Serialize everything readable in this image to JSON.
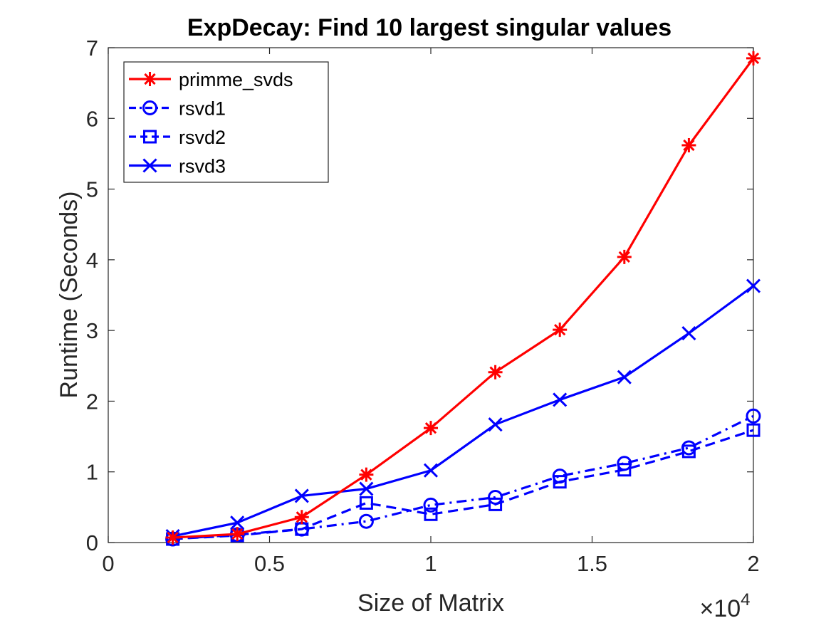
{
  "chart_data": {
    "type": "line",
    "title": "ExpDecay: Find 10 largest singular values",
    "xlabel": "Size of Matrix",
    "ylabel": "Runtime (Seconds)",
    "x_exponent_base": "×10",
    "x_exponent_power": "4",
    "xlim": [
      0,
      2
    ],
    "ylim": [
      0,
      7
    ],
    "xticks": [
      0,
      0.5,
      1,
      1.5,
      2
    ],
    "xtick_labels": [
      "0",
      "0.5",
      "1",
      "1.5",
      "2"
    ],
    "yticks": [
      0,
      1,
      2,
      3,
      4,
      5,
      6,
      7
    ],
    "ytick_labels": [
      "0",
      "1",
      "2",
      "3",
      "4",
      "5",
      "6",
      "7"
    ],
    "grid": false,
    "legend_position": "top-left",
    "x": [
      0.2,
      0.4,
      0.6,
      0.8,
      1.0,
      1.2,
      1.4,
      1.6,
      1.8,
      2.0
    ],
    "series": [
      {
        "name": "primme_svds",
        "color": "#ff0000",
        "marker": "asterisk",
        "line_style": "solid",
        "values": [
          0.07,
          0.12,
          0.36,
          0.96,
          1.62,
          2.41,
          3.01,
          4.04,
          5.62,
          6.85
        ]
      },
      {
        "name": "rsvd1",
        "color": "#0000ff",
        "marker": "circle",
        "line_style": "dashdot",
        "values": [
          0.05,
          0.11,
          0.19,
          0.3,
          0.53,
          0.64,
          0.94,
          1.12,
          1.34,
          1.79
        ]
      },
      {
        "name": "rsvd2",
        "color": "#0000ff",
        "marker": "square",
        "line_style": "dashed",
        "values": [
          0.05,
          0.1,
          0.19,
          0.56,
          0.4,
          0.54,
          0.86,
          1.03,
          1.29,
          1.59
        ]
      },
      {
        "name": "rsvd3",
        "color": "#0000ff",
        "marker": "x",
        "line_style": "solid",
        "values": [
          0.09,
          0.28,
          0.66,
          0.76,
          1.02,
          1.67,
          2.02,
          2.34,
          2.96,
          3.63
        ]
      }
    ]
  }
}
